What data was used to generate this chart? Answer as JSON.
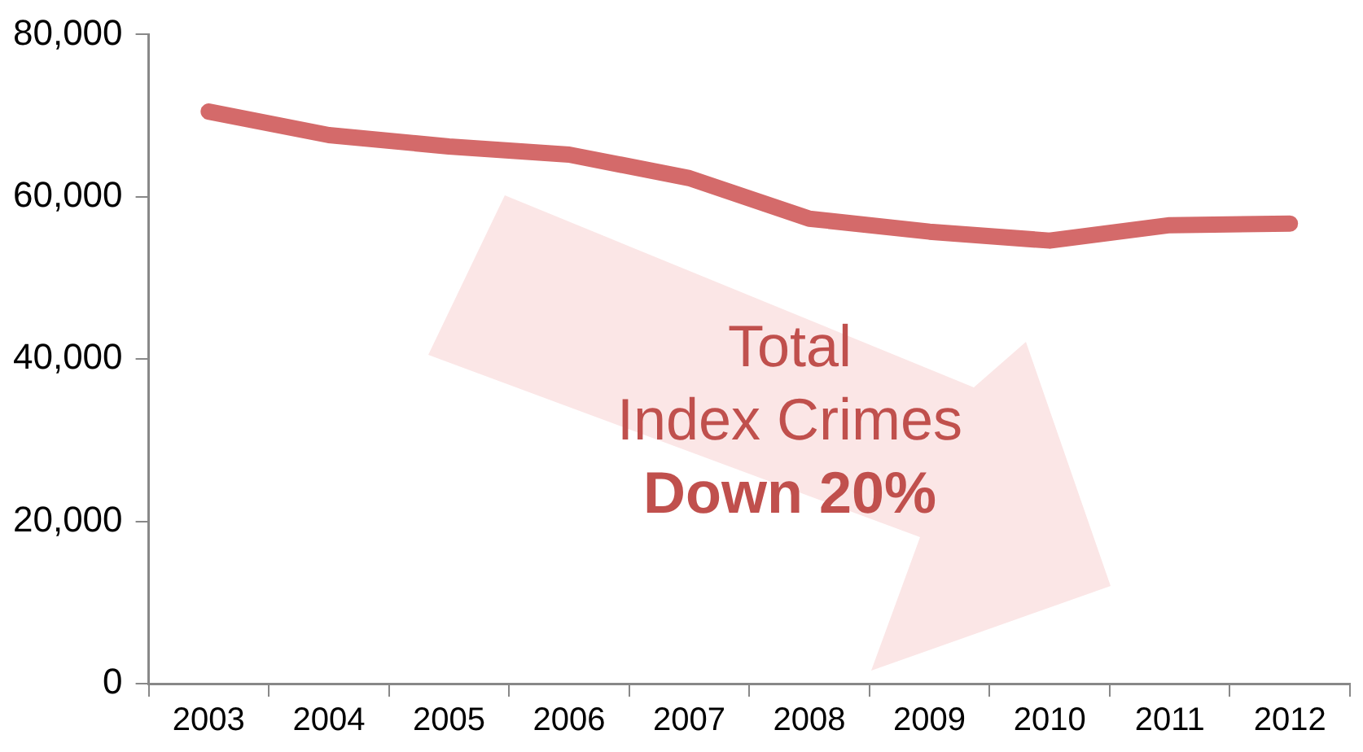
{
  "chart_data": {
    "type": "line",
    "categories": [
      "2003",
      "2004",
      "2005",
      "2006",
      "2007",
      "2008",
      "2009",
      "2010",
      "2011",
      "2012"
    ],
    "series": [
      {
        "color": "#d46a6a",
        "values": [
          70500,
          67600,
          66200,
          65200,
          62300,
          57300,
          55700,
          54600,
          56500,
          56700
        ]
      }
    ],
    "ylim": [
      0,
      80000
    ],
    "yticks": [
      0,
      {
        "value": 20000,
        "label": "20,000"
      },
      {
        "value": 40000,
        "label": "40,000"
      },
      {
        "value": 60000,
        "label": "60,000"
      },
      {
        "value": 80000,
        "label": "80,000"
      }
    ],
    "grid": false,
    "legend": false,
    "marker": "none",
    "line_style": "solid",
    "annotations": [
      "Total",
      "Index Crimes",
      "Down 20%"
    ]
  }
}
